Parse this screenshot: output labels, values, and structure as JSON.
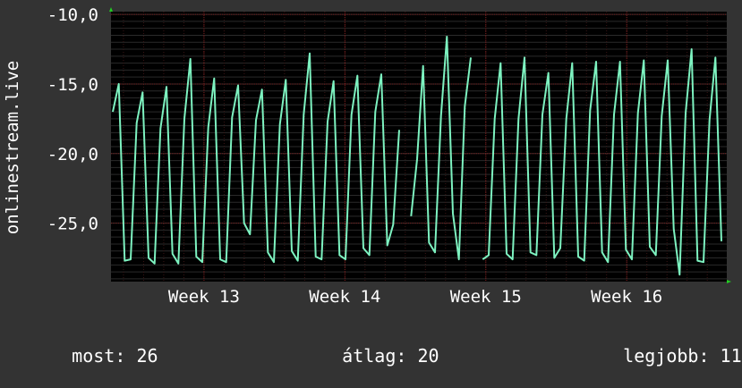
{
  "chart_data": {
    "type": "line",
    "title": "",
    "ylabel": "onlinestream.live",
    "xlabel": "",
    "ylim": [
      -29.2,
      -9.8
    ],
    "y_ticks": [
      -10,
      -15,
      -20,
      -25
    ],
    "y_tick_labels": [
      "-10,0",
      "-15,0",
      "-20,0",
      "-25,0"
    ],
    "x_tick_labels": [
      "Week 13",
      "Week 14",
      "Week 15",
      "Week 16"
    ],
    "grid": true,
    "colors": {
      "background": "#333333",
      "plot": "#000000",
      "grid": "#7a1f1f",
      "line": "#7df2c0",
      "arrow": "#22cc22"
    },
    "series": [
      {
        "values": [
          -17,
          -15,
          -27.7,
          -27.6,
          -17.8,
          -15.6,
          -27.5,
          -27.9,
          -18.2,
          -15.2,
          -27.2,
          -27.9,
          -17.5,
          -13.2,
          -27.4,
          -27.8,
          -18.1,
          -14.6,
          -27.6,
          -27.8,
          -17.4,
          -15.1,
          -25,
          -25.8,
          -17.6,
          -15.4,
          -27.1,
          -27.8,
          -17.9,
          -14.7,
          -27,
          -27.7,
          -17.2,
          -12.8,
          -27.4,
          -27.6,
          -17.7,
          -14.8,
          -27.3,
          -27.6,
          -17.2,
          -14.4,
          -26.8,
          -27.3,
          -17,
          -14.3,
          -26.6,
          -25.1,
          -18.3,
          null,
          -24.5,
          -20.4,
          -13.7,
          -26.4,
          -27.1,
          -17.3,
          -11.6,
          -24.3,
          -27.6,
          -16.6,
          -13.1,
          null,
          -27.6,
          -27.3,
          -17.5,
          -13.5,
          -27.2,
          -27.6,
          -17.5,
          -13.1,
          -27.1,
          -27.3,
          -17.2,
          -14.2,
          -27.5,
          -26.8,
          -17.5,
          -13.5,
          -27.4,
          -27.7,
          -16.9,
          -13.4,
          -27.1,
          -27.8,
          -17.2,
          -13.4,
          -26.9,
          -27.6,
          -17.1,
          -13.3,
          -26.7,
          -27.3,
          -17.3,
          -13.3,
          -25.4,
          -28.7,
          -17.1,
          -12.5,
          -27.7,
          -27.8,
          -17.6,
          -13.1,
          -26.3
        ]
      }
    ],
    "stats": [
      {
        "label": "most:",
        "value": "26"
      },
      {
        "label": "átlag:",
        "value": "20"
      },
      {
        "label": "legjobb:",
        "value": "11"
      }
    ]
  }
}
